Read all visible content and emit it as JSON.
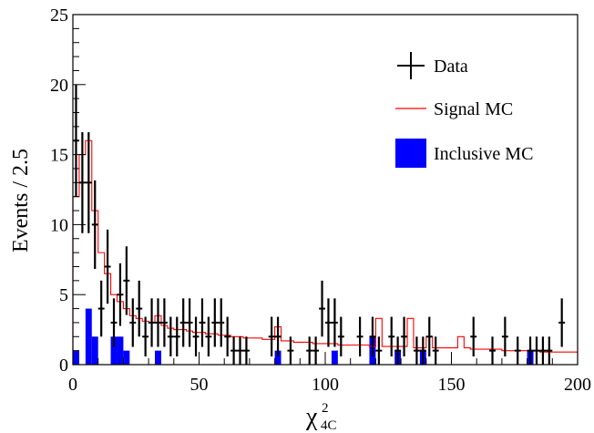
{
  "chart_data": {
    "type": "histogram",
    "x_label_base": "χ",
    "x_label_sup": "2",
    "x_label_sub": "4C",
    "ylabel": "Events / 2.5",
    "xlim": [
      0,
      200
    ],
    "ylim": [
      0,
      25
    ],
    "bin_width": 2.5,
    "x_ticks": [
      "0",
      "50",
      "100",
      "150",
      "200"
    ],
    "y_ticks": [
      "0",
      "5",
      "10",
      "15",
      "20",
      "25"
    ],
    "legend_placement": "top-right",
    "legend": {
      "data": "Data",
      "signal": "Signal MC",
      "inclusive": "Inclusive MC"
    },
    "colors": {
      "data": "#000000",
      "signal": "#ff0000",
      "inclusive": "#0000ff"
    },
    "data_points": {
      "x": [
        1.25,
        3.75,
        6.25,
        8.75,
        11.25,
        13.75,
        16.25,
        18.75,
        21.25,
        23.75,
        26.25,
        28.75,
        31.25,
        33.75,
        36.25,
        38.75,
        41.25,
        43.75,
        46.25,
        48.75,
        51.25,
        53.75,
        56.25,
        58.75,
        61.25,
        63.75,
        66.25,
        68.75,
        78.75,
        81.25,
        86.25,
        93.75,
        96.25,
        98.75,
        101.25,
        103.75,
        106.25,
        113.75,
        118.75,
        121.25,
        126.25,
        128.75,
        131.25,
        136.25,
        138.75,
        141.25,
        143.75,
        158.75,
        166.25,
        171.25,
        176.25,
        181.25,
        183.75,
        186.25,
        188.75,
        193.75
      ],
      "y": [
        16,
        13,
        13,
        10,
        4,
        7,
        3,
        5,
        6,
        3,
        4,
        2,
        3,
        3,
        3,
        2,
        2,
        3,
        3,
        2,
        3,
        2,
        3,
        3,
        2,
        1,
        1,
        1,
        2,
        2,
        1,
        1,
        1,
        4,
        3,
        3,
        2,
        2,
        2,
        1,
        2,
        1,
        2,
        1,
        1,
        2,
        1,
        2,
        1,
        2,
        1,
        1,
        1,
        1,
        1,
        3
      ]
    },
    "signal_mc": {
      "bin_edges_start": 0,
      "values": [
        12,
        15,
        16,
        11,
        8,
        6.5,
        5,
        4.5,
        4,
        3.5,
        3.3,
        3.1,
        3.0,
        3.5,
        2.8,
        2.6,
        2.5,
        2.5,
        2.4,
        2.3,
        2.3,
        2.2,
        2.2,
        2.1,
        2.1,
        2.0,
        2.0,
        1.9,
        1.9,
        1.9,
        1.8,
        1.8,
        2.7,
        1.7,
        1.7,
        1.6,
        1.6,
        1.6,
        1.5,
        1.5,
        1.5,
        1.5,
        1.4,
        1.4,
        1.4,
        1.4,
        1.4,
        1.3,
        3.3,
        1.3,
        1.3,
        1.3,
        1.3,
        3.3,
        1.2,
        1.2,
        2.0,
        1.2,
        1.2,
        1.2,
        1.2,
        2.0,
        1.2,
        1.1,
        1.1,
        1.1,
        1.1,
        1.1,
        1.0,
        1.0,
        1.0,
        1.0,
        1.0,
        1.0,
        0.9,
        0.9,
        0.9,
        0.9,
        0.9,
        0.9
      ]
    },
    "inclusive_mc": {
      "x_start": [
        0,
        5,
        7.5,
        15,
        17.5,
        20,
        32.5,
        80,
        102.5,
        117.5,
        127.5,
        137.5,
        180
      ],
      "y": [
        1,
        4,
        2,
        2,
        2,
        1,
        1,
        1,
        1,
        2,
        1,
        1,
        1
      ]
    }
  }
}
